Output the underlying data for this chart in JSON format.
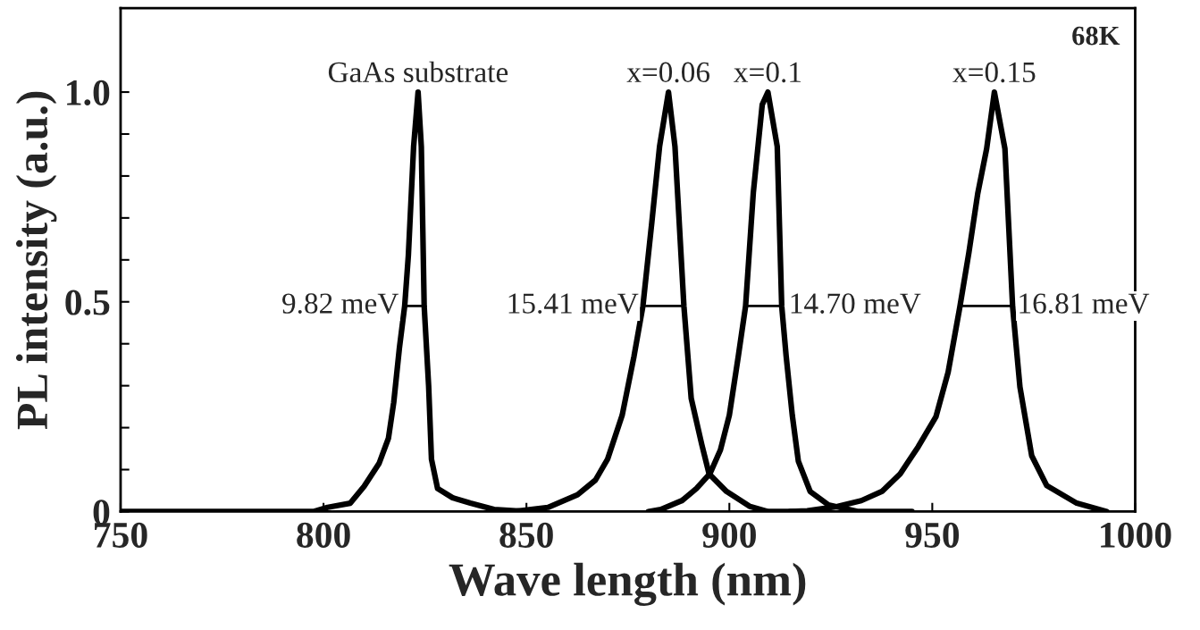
{
  "chart_data": {
    "type": "line",
    "xlabel": "Wave length (nm)",
    "ylabel": "PL intensity (a.u.)",
    "xlim": [
      750,
      1000
    ],
    "ylim": [
      0,
      1.2
    ],
    "xticks": [
      750,
      800,
      850,
      900,
      950,
      1000
    ],
    "yticks": [
      0,
      {
        "value": 0.1,
        "label": null
      },
      {
        "value": 0.2,
        "label": null
      },
      {
        "value": 0.3,
        "label": null
      },
      {
        "value": 0.4,
        "label": null
      },
      0.5,
      {
        "value": 0.6,
        "label": null
      },
      {
        "value": 0.7,
        "label": null
      },
      {
        "value": 0.8,
        "label": null
      },
      {
        "value": 0.9,
        "label": null
      },
      {
        "value": 1.0,
        "label": "1.0"
      }
    ],
    "grid": false,
    "legend": false,
    "line_style": "solid",
    "series": [
      {
        "name": "GaAs substrate",
        "color": "#000000",
        "x": [
          750,
          797.5,
          801,
          806.6,
          810,
          813.7,
          816,
          817.3,
          818.7,
          820,
          820.9,
          822.2,
          823.3,
          824.1,
          824.8,
          825.9,
          826.6,
          828.1,
          831.8,
          836.2,
          842,
          850
        ],
        "values": [
          0,
          0,
          0.01,
          0.02,
          0.06,
          0.115,
          0.175,
          0.26,
          0.39,
          0.49,
          0.61,
          0.87,
          1.0,
          0.87,
          0.49,
          0.3,
          0.125,
          0.055,
          0.033,
          0.02,
          0.005,
          0
        ]
      },
      {
        "name": "x=0.06",
        "color": "#000000",
        "x": [
          847,
          855.3,
          862.6,
          867,
          870,
          873.6,
          876.5,
          878.7,
          880.9,
          882.8,
          885.0,
          886.6,
          888.8,
          890.6,
          893.2,
          895,
          899.3,
          905.1,
          909.5,
          920
        ],
        "values": [
          0,
          0.01,
          0.04,
          0.075,
          0.125,
          0.23,
          0.37,
          0.49,
          0.69,
          0.87,
          1.0,
          0.87,
          0.49,
          0.27,
          0.16,
          0.09,
          0.048,
          0.012,
          0,
          0
        ]
      },
      {
        "name": "x=0.1",
        "color": "#000000",
        "x": [
          880,
          883.1,
          888.3,
          891.9,
          895.2,
          897.8,
          900,
          902.2,
          904,
          905.9,
          908.1,
          909.5,
          911.8,
          912.9,
          914,
          915.5,
          917,
          919.9,
          924.4,
          931.8,
          945
        ],
        "values": [
          0,
          0.005,
          0.026,
          0.055,
          0.09,
          0.147,
          0.23,
          0.37,
          0.49,
          0.76,
          0.97,
          1.0,
          0.87,
          0.49,
          0.37,
          0.23,
          0.12,
          0.048,
          0.016,
          0,
          0
        ]
      },
      {
        "name": "x=0.15",
        "color": "#000000",
        "x": [
          915,
          919.2,
          926.6,
          932.5,
          937.6,
          942.1,
          946.5,
          950.9,
          953.9,
          956.8,
          959,
          961.2,
          963.4,
          965.3,
          967.9,
          969.8,
          971.6,
          974.5,
          978.2,
          985.6,
          993
        ],
        "values": [
          0,
          0.002,
          0.012,
          0.026,
          0.048,
          0.09,
          0.154,
          0.226,
          0.332,
          0.488,
          0.616,
          0.758,
          0.865,
          1.0,
          0.865,
          0.488,
          0.297,
          0.133,
          0.062,
          0.02,
          0
        ]
      },
      {
        "type": "step",
        "color": "#000000",
        "x": [
          820.4,
          824.4
        ],
        "values": [
          0.49,
          0.49
        ]
      },
      {
        "type": "step",
        "color": "#000000",
        "x": [
          879.5,
          888.7
        ],
        "values": [
          0.49,
          0.49
        ]
      },
      {
        "type": "step",
        "color": "#000000",
        "x": [
          904,
          912.8
        ],
        "values": [
          0.49,
          0.49
        ]
      },
      {
        "type": "step",
        "color": "#000000",
        "x": [
          957.6,
          969.1
        ],
        "values": [
          0.49,
          0.49
        ]
      }
    ],
    "annotations": [
      {
        "text": "9.82 meV",
        "x": 820.4,
        "y": 0.49
      },
      {
        "text": "15.41 meV",
        "x": 879.5,
        "y": 0.49
      },
      {
        "text": "14.70 meV",
        "x": 912.8,
        "y": 0.49
      },
      {
        "text": "16.81 meV",
        "x": 969.1,
        "y": 0.49
      },
      "68K"
    ]
  }
}
